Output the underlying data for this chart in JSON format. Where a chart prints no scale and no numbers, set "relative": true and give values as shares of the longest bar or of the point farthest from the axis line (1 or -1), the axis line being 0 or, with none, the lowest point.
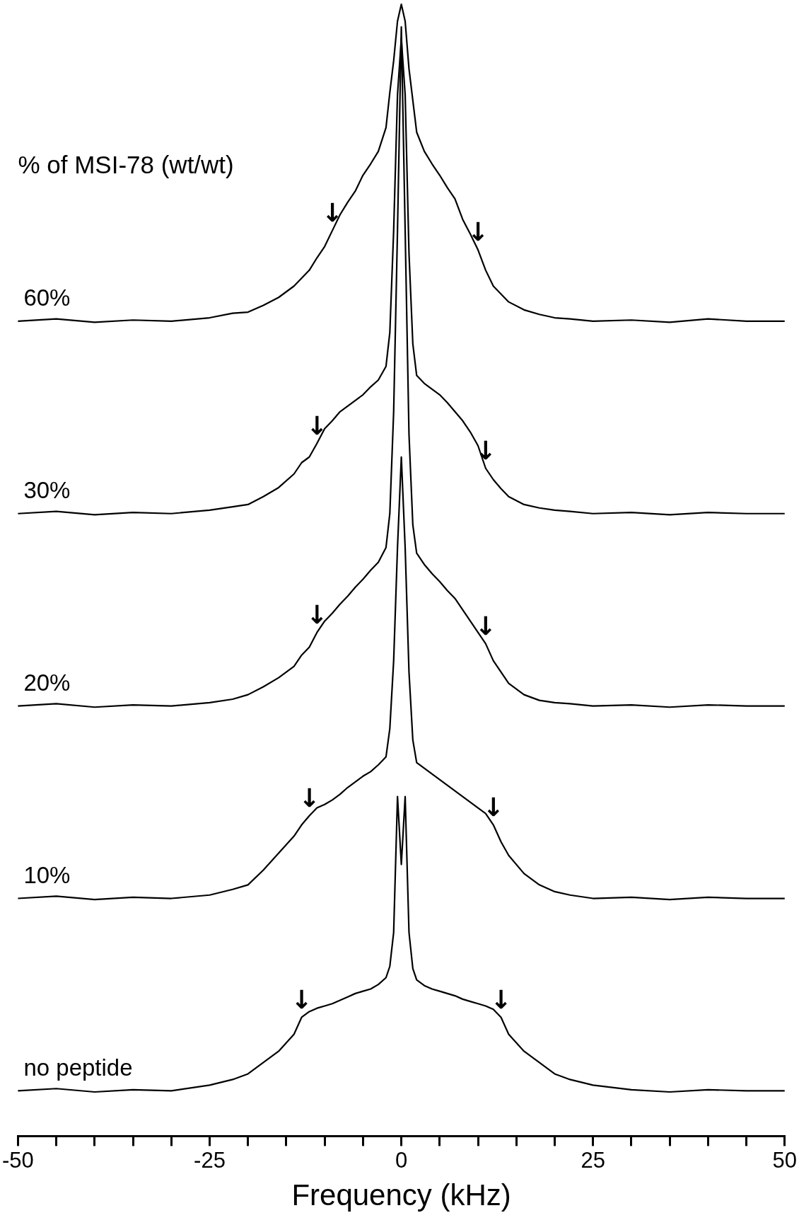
{
  "chart_data": {
    "type": "line",
    "relative": true,
    "xlabel": "Frequency (kHz)",
    "xlim": [
      -50,
      50
    ],
    "xticks": [
      -50,
      {
        "value": -45,
        "label": null
      },
      {
        "value": -40,
        "label": null
      },
      {
        "value": -35,
        "label": null
      },
      {
        "value": -30,
        "label": null
      },
      -25,
      {
        "value": -20,
        "label": null
      },
      {
        "value": -15,
        "label": null
      },
      {
        "value": -10,
        "label": null
      },
      {
        "value": -5,
        "label": null
      },
      0,
      {
        "value": 5,
        "label": null
      },
      {
        "value": 10,
        "label": null
      },
      {
        "value": 15,
        "label": null
      },
      {
        "value": 20,
        "label": null
      },
      25,
      {
        "value": 30,
        "label": null
      },
      {
        "value": 35,
        "label": null
      },
      {
        "value": 40,
        "label": null
      },
      {
        "value": 45,
        "label": null
      },
      50
    ],
    "x": [
      -50,
      -45,
      -40,
      -35,
      -30,
      -25,
      -22,
      -20,
      -18,
      -16,
      -14,
      -13,
      -12,
      -11,
      -10,
      -9,
      -8,
      -7,
      -6,
      -5,
      -4,
      -3,
      -2,
      -1.5,
      -1,
      -0.5,
      0,
      0.5,
      1,
      1.5,
      2,
      3,
      4,
      5,
      6,
      7,
      8,
      9,
      10,
      11,
      12,
      13,
      14,
      16,
      18,
      20,
      22,
      25,
      30,
      35,
      40,
      45,
      50
    ],
    "series": [
      {
        "name": "60%",
        "color": "#000000",
        "values": [
          0.72,
          0.722,
          0.719,
          0.721,
          0.72,
          0.723,
          0.727,
          0.728,
          0.734,
          0.741,
          0.751,
          0.758,
          0.765,
          0.776,
          0.786,
          0.8,
          0.814,
          0.825,
          0.835,
          0.849,
          0.859,
          0.87,
          0.891,
          0.922,
          0.95,
          0.985,
          1.0,
          0.985,
          0.943,
          0.915,
          0.887,
          0.87,
          0.859,
          0.849,
          0.838,
          0.828,
          0.81,
          0.797,
          0.783,
          0.765,
          0.751,
          0.744,
          0.737,
          0.73,
          0.726,
          0.723,
          0.722,
          0.72,
          0.721,
          0.719,
          0.722,
          0.72,
          0.72
        ]
      },
      {
        "name": "30%",
        "color": "#000000",
        "values": [
          0.55,
          0.552,
          0.549,
          0.551,
          0.55,
          0.553,
          0.556,
          0.558,
          0.565,
          0.573,
          0.585,
          0.595,
          0.6,
          0.612,
          0.625,
          0.632,
          0.64,
          0.645,
          0.65,
          0.655,
          0.662,
          0.668,
          0.68,
          0.71,
          0.8,
          0.92,
          0.97,
          0.92,
          0.78,
          0.7,
          0.672,
          0.665,
          0.66,
          0.655,
          0.648,
          0.64,
          0.632,
          0.622,
          0.61,
          0.59,
          0.58,
          0.572,
          0.565,
          0.558,
          0.555,
          0.553,
          0.552,
          0.55,
          0.551,
          0.549,
          0.551,
          0.55,
          0.55
        ]
      },
      {
        "name": "20%",
        "color": "#000000",
        "values": [
          0.38,
          0.382,
          0.379,
          0.381,
          0.38,
          0.383,
          0.386,
          0.39,
          0.397,
          0.405,
          0.415,
          0.425,
          0.432,
          0.445,
          0.455,
          0.462,
          0.47,
          0.477,
          0.485,
          0.492,
          0.5,
          0.507,
          0.52,
          0.55,
          0.64,
          0.8,
          0.98,
          0.8,
          0.62,
          0.54,
          0.515,
          0.505,
          0.497,
          0.49,
          0.482,
          0.475,
          0.465,
          0.455,
          0.445,
          0.435,
          0.42,
          0.41,
          0.4,
          0.39,
          0.385,
          0.383,
          0.382,
          0.38,
          0.381,
          0.379,
          0.381,
          0.38,
          0.38
        ]
      },
      {
        "name": "10%",
        "color": "#000000",
        "values": [
          0.21,
          0.212,
          0.209,
          0.211,
          0.21,
          0.213,
          0.218,
          0.222,
          0.235,
          0.25,
          0.265,
          0.275,
          0.283,
          0.29,
          0.293,
          0.297,
          0.302,
          0.308,
          0.313,
          0.318,
          0.322,
          0.328,
          0.335,
          0.36,
          0.42,
          0.52,
          0.6,
          0.52,
          0.41,
          0.35,
          0.33,
          0.325,
          0.32,
          0.315,
          0.31,
          0.305,
          0.3,
          0.295,
          0.29,
          0.285,
          0.275,
          0.26,
          0.248,
          0.232,
          0.222,
          0.216,
          0.213,
          0.21,
          0.211,
          0.209,
          0.211,
          0.21,
          0.21
        ]
      },
      {
        "name": "no peptide",
        "color": "#000000",
        "values": [
          0.04,
          0.042,
          0.039,
          0.041,
          0.04,
          0.045,
          0.05,
          0.055,
          0.065,
          0.075,
          0.09,
          0.105,
          0.11,
          0.113,
          0.115,
          0.117,
          0.12,
          0.123,
          0.126,
          0.128,
          0.13,
          0.134,
          0.14,
          0.15,
          0.18,
          0.3,
          0.24,
          0.3,
          0.18,
          0.148,
          0.138,
          0.133,
          0.13,
          0.128,
          0.126,
          0.124,
          0.121,
          0.119,
          0.117,
          0.115,
          0.112,
          0.105,
          0.09,
          0.075,
          0.065,
          0.055,
          0.05,
          0.045,
          0.041,
          0.039,
          0.041,
          0.04,
          0.04
        ]
      }
    ],
    "annotations": [
      "% of MSI-78 (wt/wt)",
      {
        "text": "↓",
        "x": -9,
        "y": 0.8
      },
      {
        "text": "↓",
        "x": 10,
        "y": 0.783
      },
      {
        "text": "↓",
        "x": -11,
        "y": 0.612
      },
      {
        "text": "↓",
        "x": 11,
        "y": 0.59
      },
      {
        "text": "↓",
        "x": -11,
        "y": 0.445
      },
      {
        "text": "↓",
        "x": 11,
        "y": 0.435
      },
      {
        "text": "↓",
        "x": -12,
        "y": 0.283
      },
      {
        "text": "↓",
        "x": 12,
        "y": 0.275
      },
      {
        "text": "↓",
        "x": -13,
        "y": 0.105
      },
      {
        "text": "↓",
        "x": 13,
        "y": 0.105
      }
    ]
  }
}
